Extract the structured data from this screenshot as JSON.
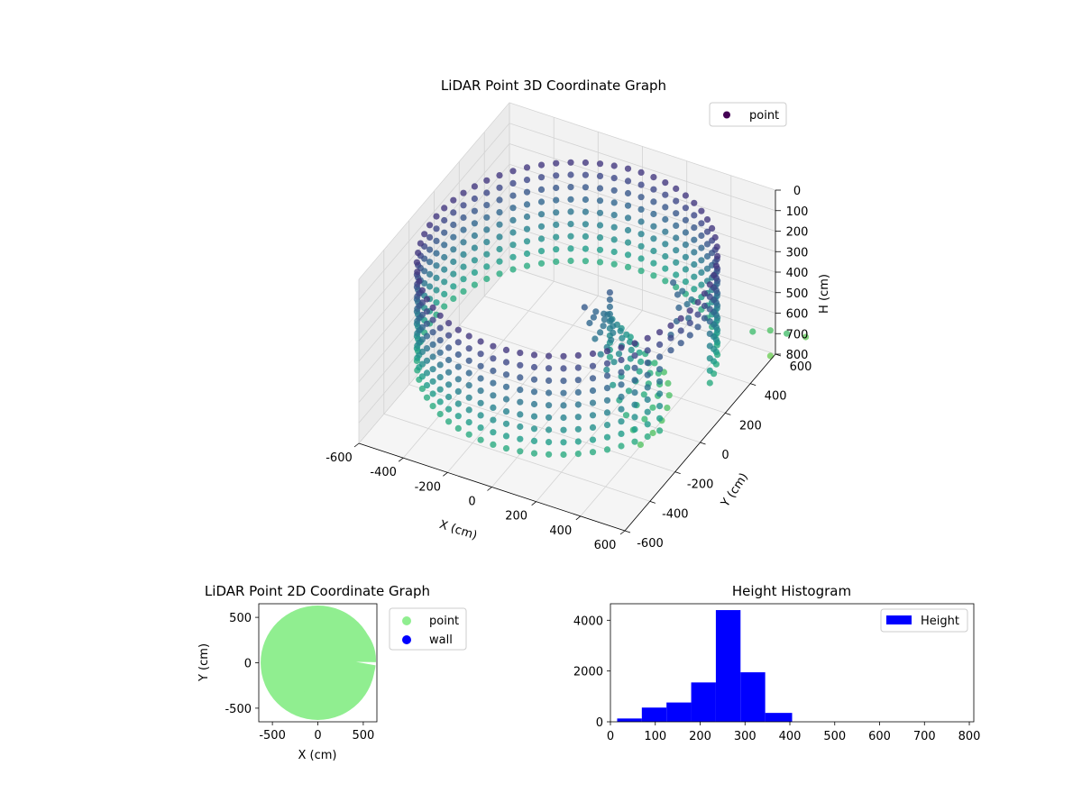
{
  "chart_data": [
    {
      "type": "scatter",
      "title": "LiDAR Point 3D Coordinate Graph",
      "xlabel": "X (cm)",
      "ylabel": "Y (cm)",
      "zlabel": "H (cm)",
      "x_ticks": [
        "-600",
        "-400",
        "-200",
        "0",
        "200",
        "400",
        "600"
      ],
      "y_ticks": [
        "-600",
        "-400",
        "-200",
        "0",
        "200",
        "400",
        "600"
      ],
      "z_ticks": [
        "0",
        "100",
        "200",
        "300",
        "400",
        "500",
        "600",
        "700",
        "800"
      ],
      "xlim": [
        -600,
        600
      ],
      "ylim": [
        -600,
        600
      ],
      "zlim": [
        0,
        800
      ],
      "z_inverted": true,
      "grid": true,
      "colormap": "viridis",
      "legend": {
        "position": "top-right",
        "entries": [
          {
            "label": "point",
            "color": "#440154"
          }
        ]
      },
      "series": [
        {
          "name": "point"
        }
      ]
    },
    {
      "type": "scatter",
      "title": "LiDAR Point 2D Coordinate Graph",
      "xlabel": "X (cm)",
      "ylabel": "Y (cm)",
      "x_ticks": [
        "-500",
        "0",
        "500"
      ],
      "y_ticks": [
        "500",
        "0",
        "-500"
      ],
      "xlim": [
        -650,
        650
      ],
      "ylim": [
        -650,
        650
      ],
      "grid": false,
      "legend": {
        "position": "outside-right",
        "entries": [
          {
            "label": "point",
            "color": "#90ee90"
          },
          {
            "label": "wall",
            "color": "#0000ff"
          }
        ]
      },
      "series": [
        {
          "name": "point"
        },
        {
          "name": "wall"
        }
      ]
    },
    {
      "type": "bar",
      "title": "Height Histogram",
      "xlabel": "",
      "ylabel": "",
      "x_ticks": [
        "0",
        "100",
        "200",
        "300",
        "400",
        "500",
        "600",
        "700",
        "800"
      ],
      "y_ticks": [
        "0",
        "2000",
        "4000"
      ],
      "xlim": [
        0,
        810
      ],
      "ylim": [
        0,
        4650
      ],
      "bar_color": "#0000ff",
      "legend": {
        "position": "top-right",
        "entries": [
          {
            "label": "Height",
            "color": "#0000ff"
          }
        ]
      },
      "bins": [
        {
          "x0": 15,
          "x1": 70,
          "value": 130
        },
        {
          "x0": 70,
          "x1": 125,
          "value": 560
        },
        {
          "x0": 125,
          "x1": 180,
          "value": 760
        },
        {
          "x0": 180,
          "x1": 235,
          "value": 1550
        },
        {
          "x0": 235,
          "x1": 290,
          "value": 4400
        },
        {
          "x0": 290,
          "x1": 345,
          "value": 1950
        },
        {
          "x0": 345,
          "x1": 405,
          "value": 350
        }
      ]
    }
  ]
}
